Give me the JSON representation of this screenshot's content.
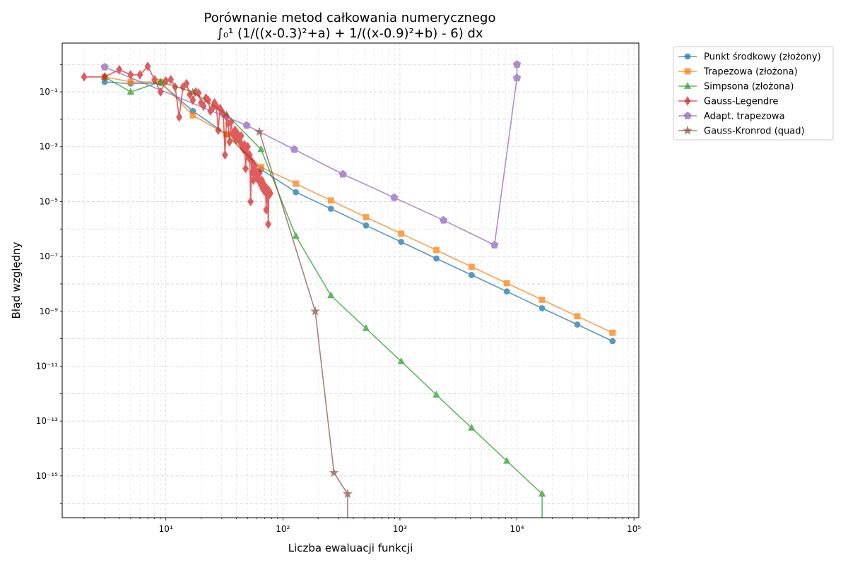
{
  "chart_data": {
    "type": "line",
    "title": "Porównanie metod całkowania numerycznego",
    "subtitle": "∫₀¹ (1/((x-0.3)²+a) + 1/((x-0.9)²+b) - 6) dx",
    "xlabel": "Liczba ewaluacji funkcji",
    "ylabel": "Błąd względny",
    "xscale": "log",
    "yscale": "log",
    "xlim": [
      1.3,
      110000
    ],
    "ylim": [
      3e-17,
      6
    ],
    "xticks": [
      {
        "value": 10,
        "label": "10¹"
      },
      {
        "value": 100,
        "label": "10²"
      },
      {
        "value": 1000,
        "label": "10³"
      },
      {
        "value": 10000,
        "label": "10⁴"
      },
      {
        "value": 100000,
        "label": "10⁵"
      }
    ],
    "yticks": [
      {
        "value": 1e-15,
        "label": "10⁻¹⁵"
      },
      {
        "value": 1e-13,
        "label": "10⁻¹³"
      },
      {
        "value": 1e-11,
        "label": "10⁻¹¹"
      },
      {
        "value": 1e-09,
        "label": "10⁻⁹"
      },
      {
        "value": 1e-07,
        "label": "10⁻⁷"
      },
      {
        "value": 1e-05,
        "label": "10⁻⁵"
      },
      {
        "value": 0.001,
        "label": "10⁻³"
      },
      {
        "value": 0.1,
        "label": "10⁻¹"
      }
    ],
    "grid": true,
    "legend_position": "outside-top-right",
    "series": [
      {
        "name": "Punkt środkowy (złożony)",
        "color": "#1f77b4",
        "marker": "circle",
        "x": [
          3,
          5,
          9,
          17,
          33,
          65,
          129,
          257,
          513,
          1025,
          2049,
          4097,
          8193,
          16385,
          32769,
          65537
        ],
        "y": [
          0.23,
          0.2,
          0.21,
          0.02,
          0.0028,
          0.00015,
          2.2e-05,
          5.5e-06,
          1.35e-06,
          3.4e-07,
          8.4e-08,
          2.1e-08,
          5.3e-09,
          1.3e-09,
          3.3e-10,
          8.2e-11
        ]
      },
      {
        "name": "Trapezowa (złożona)",
        "color": "#ff7f0e",
        "marker": "square",
        "x": [
          3,
          5,
          9,
          17,
          33,
          65,
          129,
          257,
          513,
          1025,
          2049,
          4097,
          8193,
          16385,
          32769,
          65537
        ],
        "y": [
          0.35,
          0.23,
          0.23,
          0.014,
          0.0028,
          0.00018,
          4.5e-05,
          1.1e-05,
          2.7e-06,
          6.8e-07,
          1.7e-07,
          4.2e-08,
          1.06e-08,
          2.65e-09,
          6.6e-10,
          1.65e-10
        ]
      },
      {
        "name": "Simpsona (złożona)",
        "color": "#2ca02c",
        "marker": "triangle",
        "x": [
          3,
          5,
          9,
          17,
          33,
          65,
          129,
          257,
          513,
          1025,
          2049,
          4097,
          8193,
          16385,
          16385
        ],
        "y": [
          0.35,
          0.1,
          0.23,
          0.1,
          0.015,
          0.0008,
          5.5e-07,
          3.8e-09,
          2.4e-10,
          1.5e-11,
          9e-13,
          5.6e-14,
          3.5e-15,
          2.2e-16,
          3e-17
        ]
      },
      {
        "name": "Gauss-Legendre",
        "color": "#d62728",
        "marker": "diamond",
        "x": [
          2,
          3,
          4,
          5,
          6,
          7,
          8,
          9,
          10,
          11,
          12,
          13,
          14,
          15,
          16,
          17,
          18,
          19,
          20,
          21,
          22,
          23,
          24,
          25,
          26,
          27,
          28,
          29,
          30,
          31,
          32,
          33,
          34,
          35,
          36,
          37,
          38,
          39,
          40,
          41,
          42,
          43,
          44,
          45,
          46,
          47,
          48,
          49,
          50,
          51,
          52,
          53,
          54,
          55,
          56,
          57,
          58,
          59,
          60,
          61,
          62,
          63,
          64,
          65,
          66,
          67,
          68,
          69,
          70,
          71,
          72,
          73,
          74,
          75,
          76,
          77,
          78
        ],
        "y": [
          0.35,
          0.35,
          0.65,
          0.42,
          0.42,
          0.85,
          0.28,
          0.1,
          0.25,
          0.28,
          0.15,
          0.012,
          0.15,
          0.2,
          0.08,
          0.05,
          0.1,
          0.09,
          0.04,
          0.03,
          0.06,
          0.05,
          0.02,
          0.025,
          0.04,
          0.03,
          0.004,
          0.025,
          0.02,
          0.015,
          0.0005,
          0.012,
          0.007,
          0.0015,
          0.008,
          0.003,
          0.0025,
          0.004,
          0.0018,
          0.003,
          0.002,
          0.0015,
          0.0025,
          0.001,
          0.0008,
          0.0012,
          0.00016,
          0.0006,
          0.001,
          0.0004,
          0.0005,
          1e-05,
          0.0003,
          0.00012,
          6e-05,
          0.0002,
          0.00015,
          0.0001,
          7e-05,
          9e-05,
          6e-05,
          0.00011,
          5e-05,
          4e-05,
          6e-05,
          3e-05,
          4.5e-05,
          2.5e-05,
          3.5e-05,
          2.2e-05,
          5e-06,
          3e-05,
          2e-05,
          1.5e-06,
          2.5e-05,
          1.8e-05,
          2e-05
        ]
      },
      {
        "name": "Adapt. trapezowa",
        "color": "#9467bd",
        "marker": "pentagon",
        "x": [
          3,
          49,
          125,
          325,
          893,
          2357,
          6425,
          10001,
          10001
        ],
        "y": [
          0.8,
          0.006,
          0.0008,
          0.0001,
          1.4e-05,
          2.1e-06,
          2.6e-07,
          0.32,
          1
        ]
      },
      {
        "name": "Gauss-Kronrod (quad)",
        "color": "#8c564b",
        "marker": "star",
        "x": [
          63,
          189,
          273,
          357,
          357
        ],
        "y": [
          0.0035,
          1e-09,
          1.3e-15,
          2.2e-16,
          3e-17
        ]
      }
    ]
  }
}
